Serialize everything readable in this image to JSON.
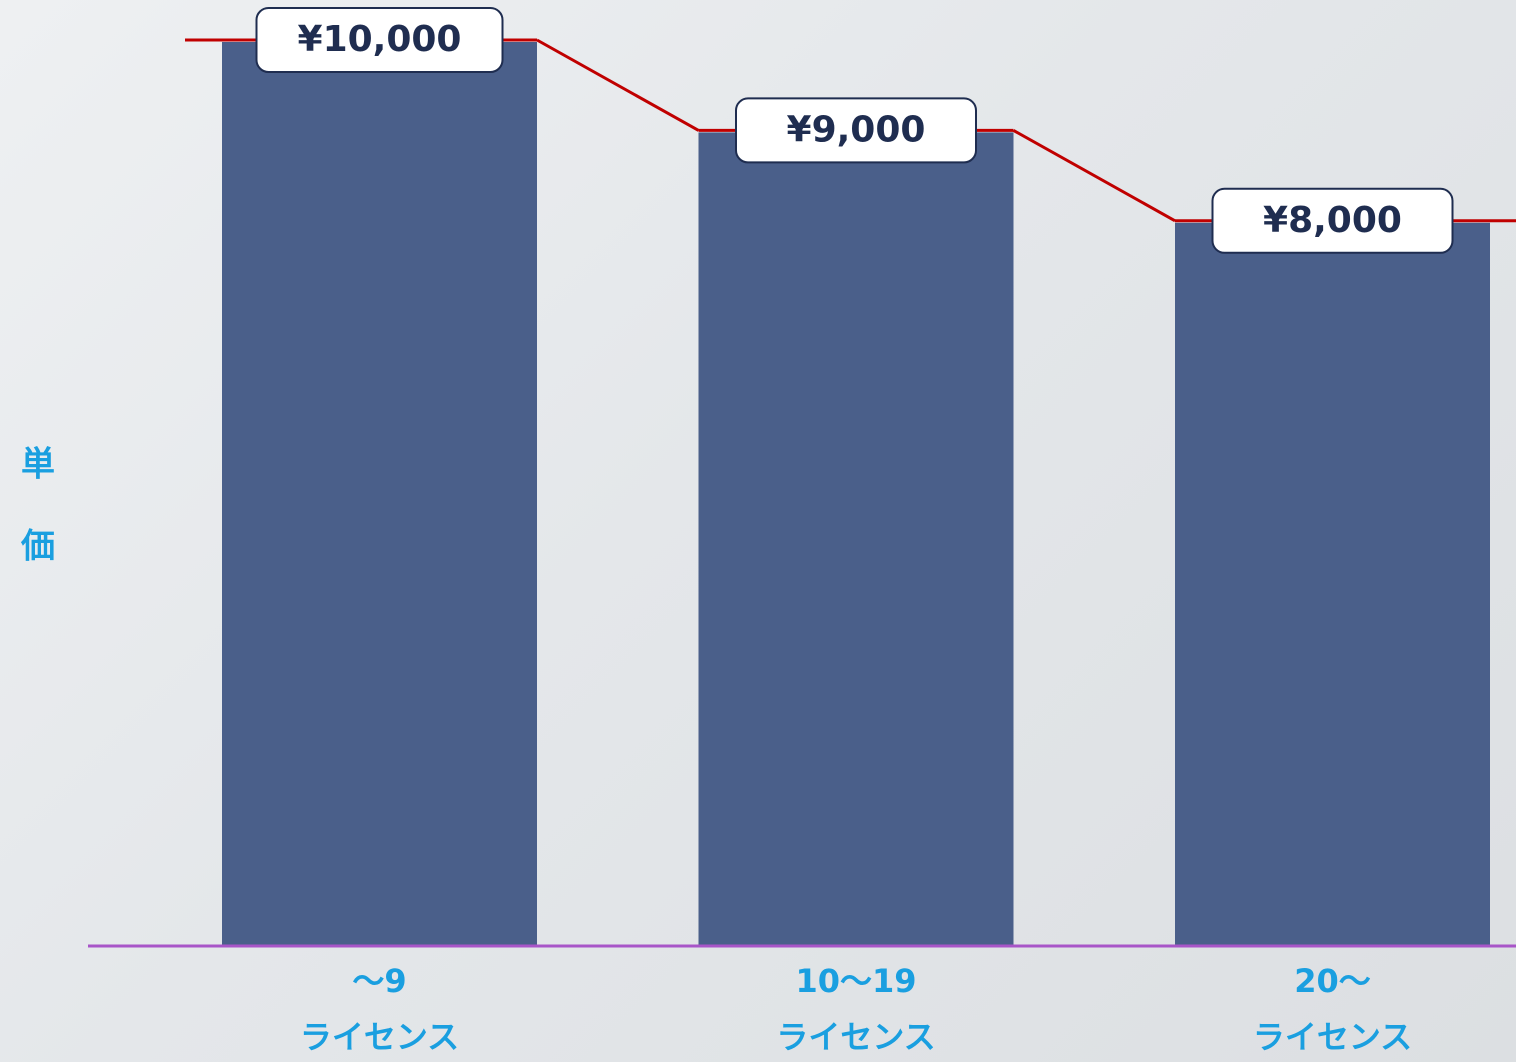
{
  "chart_data": {
    "type": "bar",
    "y_label": [
      "単",
      "価"
    ],
    "categories": [
      [
        "～9",
        "ライセンス"
      ],
      [
        "10～19",
        "ライセンス"
      ],
      [
        "20～",
        "ライセンス"
      ]
    ],
    "values": [
      10000,
      9000,
      8000
    ],
    "value_labels": [
      "¥10,000",
      "¥9,000",
      "¥8,000"
    ],
    "color": "#4a5f8a",
    "line_color": "#c00000",
    "axis_color": "#a855c8",
    "label_color": "#1a9fe0",
    "ylim": [
      0,
      10000
    ]
  }
}
